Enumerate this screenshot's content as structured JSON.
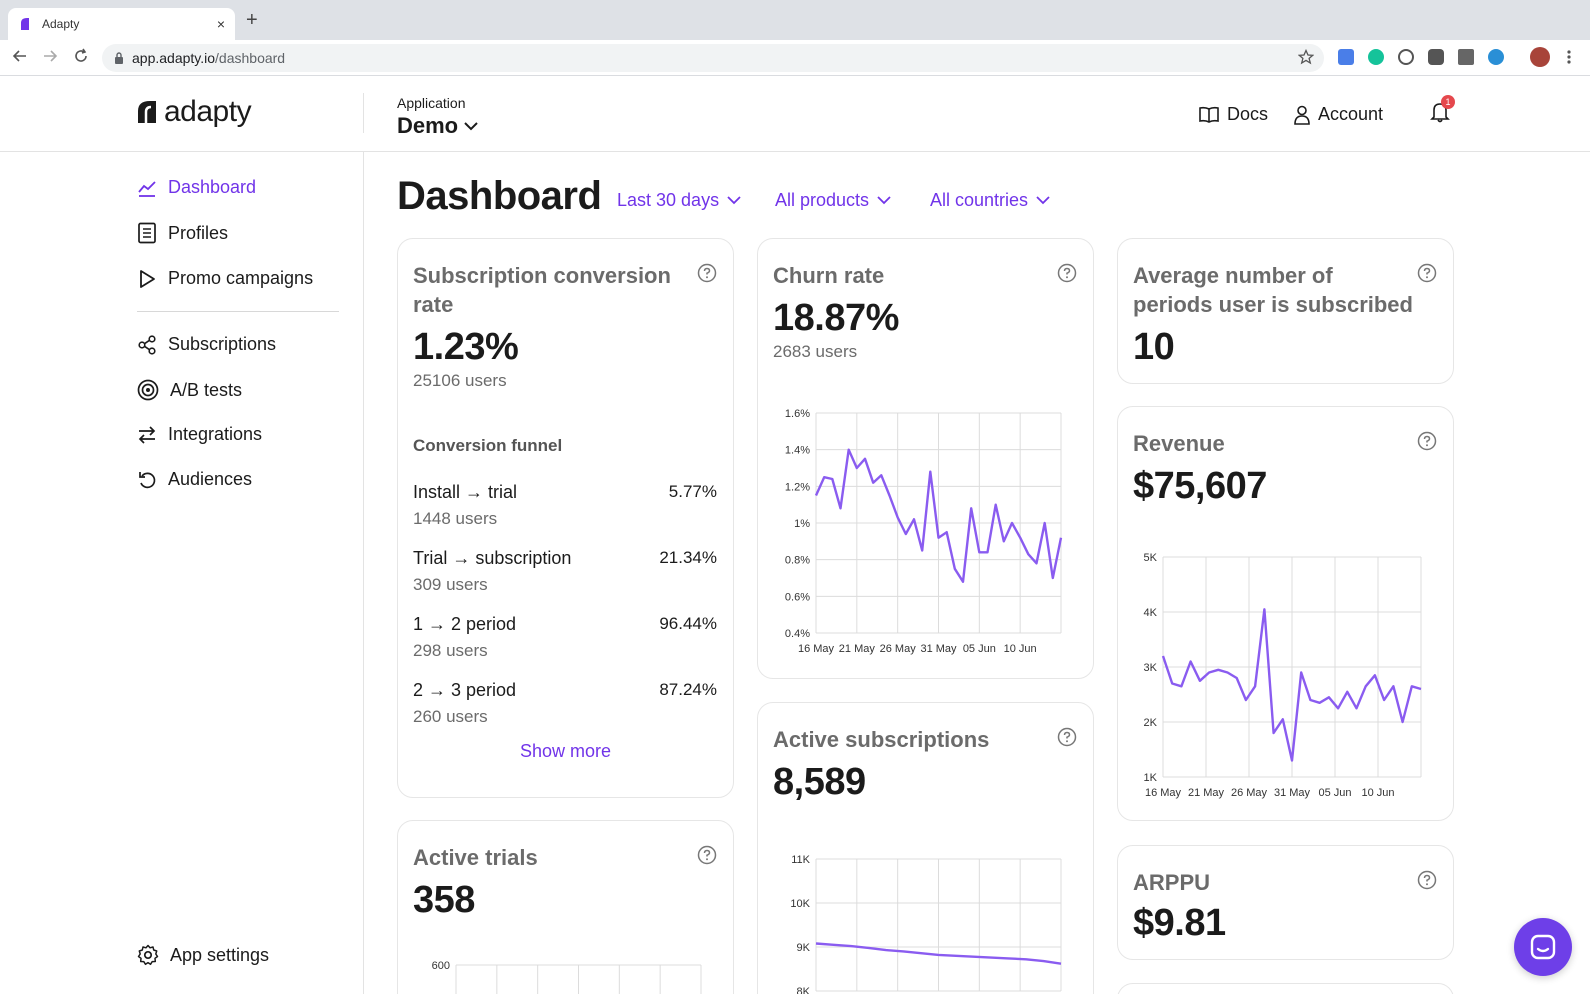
{
  "browser": {
    "tab_title": "Adapty",
    "tab_close": "×",
    "new_tab": "+",
    "url_host": "app.adapty.io",
    "url_path": "/dashboard"
  },
  "header": {
    "logo_text": "adapty",
    "app_label": "Application",
    "app_name": "Demo",
    "docs_label": "Docs",
    "account_label": "Account",
    "notification_count": "1"
  },
  "sidebar": {
    "items": [
      {
        "label": "Dashboard"
      },
      {
        "label": "Profiles"
      },
      {
        "label": "Promo campaigns"
      },
      {
        "label": "Subscriptions"
      },
      {
        "label": "A/B tests"
      },
      {
        "label": "Integrations"
      },
      {
        "label": "Audiences"
      }
    ],
    "settings_label": "App settings"
  },
  "main": {
    "title": "Dashboard",
    "filters": {
      "period": "Last 30 days",
      "products": "All products",
      "countries": "All countries"
    }
  },
  "cards": {
    "conversion": {
      "title_line1": "Subscription conversion",
      "title_line2": "rate",
      "value": "1.23%",
      "users": "25106 users",
      "funnel_title": "Conversion funnel",
      "funnel": [
        {
          "label": "Install → trial",
          "pct": "5.77%",
          "users": "1448 users"
        },
        {
          "label": "Trial → subscription",
          "pct": "21.34%",
          "users": "309 users"
        },
        {
          "label": "1 → 2 period",
          "pct": "96.44%",
          "users": "298 users"
        },
        {
          "label": "2 → 3 period",
          "pct": "87.24%",
          "users": "260 users"
        }
      ],
      "show_more": "Show more"
    },
    "churn": {
      "title": "Churn rate",
      "value": "18.87%",
      "users": "2683 users"
    },
    "avg_periods": {
      "title_line1": "Average number of",
      "title_line2": "periods user is subscribed",
      "value": "10"
    },
    "revenue": {
      "title": "Revenue",
      "value": "$75,607"
    },
    "active_subs": {
      "title": "Active subscriptions",
      "value": "8,589"
    },
    "active_trials": {
      "title": "Active trials",
      "value": "358"
    },
    "arppu": {
      "title": "ARPPU",
      "value": "$9.81"
    }
  },
  "colors": {
    "accent": "#7134e9",
    "line": "#8a5cf0"
  },
  "chart_data": [
    {
      "id": "churn",
      "type": "line",
      "title": "Churn rate",
      "x_tick_labels": [
        "16 May",
        "21 May",
        "26 May",
        "31 May",
        "05 Jun",
        "10 Jun"
      ],
      "y_tick_labels": [
        "1.6%",
        "1.4%",
        "1.2%",
        "1%",
        "0.8%",
        "0.6%",
        "0.4%"
      ],
      "ylim": [
        0.4,
        1.6
      ],
      "values": [
        1.15,
        1.25,
        1.24,
        1.08,
        1.4,
        1.3,
        1.35,
        1.22,
        1.26,
        1.15,
        1.03,
        0.94,
        1.02,
        0.85,
        1.28,
        0.92,
        0.95,
        0.75,
        0.68,
        1.08,
        0.84,
        0.84,
        1.1,
        0.9,
        1.0,
        0.92,
        0.83,
        0.78,
        1.0,
        0.7,
        0.92
      ]
    },
    {
      "id": "revenue",
      "type": "line",
      "title": "Revenue",
      "x_tick_labels": [
        "16 May",
        "21 May",
        "26 May",
        "31 May",
        "05 Jun",
        "10 Jun"
      ],
      "y_tick_labels": [
        "5K",
        "4K",
        "3K",
        "2K",
        "1K"
      ],
      "ylim": [
        1000,
        5000
      ],
      "values": [
        3200,
        2700,
        2650,
        3100,
        2750,
        2900,
        2950,
        2900,
        2800,
        2400,
        2650,
        4050,
        1800,
        2050,
        1300,
        2900,
        2400,
        2350,
        2450,
        2250,
        2550,
        2250,
        2650,
        2850,
        2400,
        2650,
        2000,
        2650,
        2600
      ]
    },
    {
      "id": "active_subs",
      "type": "line",
      "title": "Active subscriptions",
      "y_tick_labels": [
        "11K",
        "10K",
        "9K",
        "8K"
      ],
      "ylim": [
        8000,
        11000
      ],
      "values": [
        9080,
        9050,
        9020,
        8980,
        8930,
        8900,
        8860,
        8820,
        8800,
        8780,
        8760,
        8740,
        8720,
        8680,
        8620
      ]
    },
    {
      "id": "active_trials",
      "type": "line",
      "title": "Active trials",
      "y_tick_labels": [
        "600"
      ],
      "ylim": [
        0,
        600
      ],
      "values": []
    }
  ]
}
